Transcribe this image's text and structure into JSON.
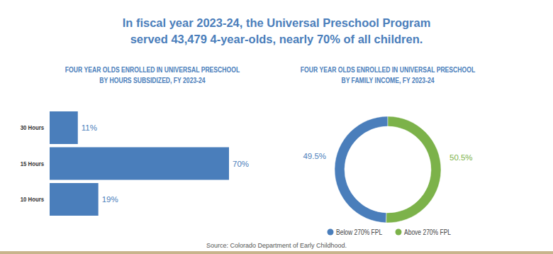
{
  "header": {
    "title": [
      "In fiscal year 2023-24, the Universal Preschool Program",
      "served 43,479 4-year-olds, nearly 70% of all children."
    ]
  },
  "chart_data": [
    {
      "type": "bar",
      "orientation": "horizontal",
      "title": "FOUR YEAR OLDS ENROLLED IN UNIVERSAL PRESCHOOL",
      "subtitle": "BY HOURS SUBSIDIZED, FY 2023-24",
      "categories": [
        "30 Hours",
        "15 Hours",
        "10 Hours"
      ],
      "values": [
        11,
        70,
        19
      ],
      "value_labels": [
        "11%",
        "70%",
        "19%"
      ],
      "color": "#4a7ebb",
      "data_labels": true,
      "tick_labels": "y",
      "grid": false
    },
    {
      "type": "pie",
      "title": "FOUR YEAR OLDS ENROLLED IN UNIVERSAL PRESCHOOL",
      "subtitle": "BY FAMILY INCOME, FY 2023-24",
      "categories": [
        "Below 270% FPL",
        "Above 270% FPL"
      ],
      "values": [
        49.5,
        50.5
      ],
      "value_labels": [
        "49.5%",
        "50.5%"
      ],
      "colors": [
        "#4a7ebb",
        "#7cb24a"
      ],
      "data_labels": true,
      "legend": "bottom"
    }
  ],
  "footer": {
    "source": "Source: Colorado Department of Early Childhood."
  }
}
